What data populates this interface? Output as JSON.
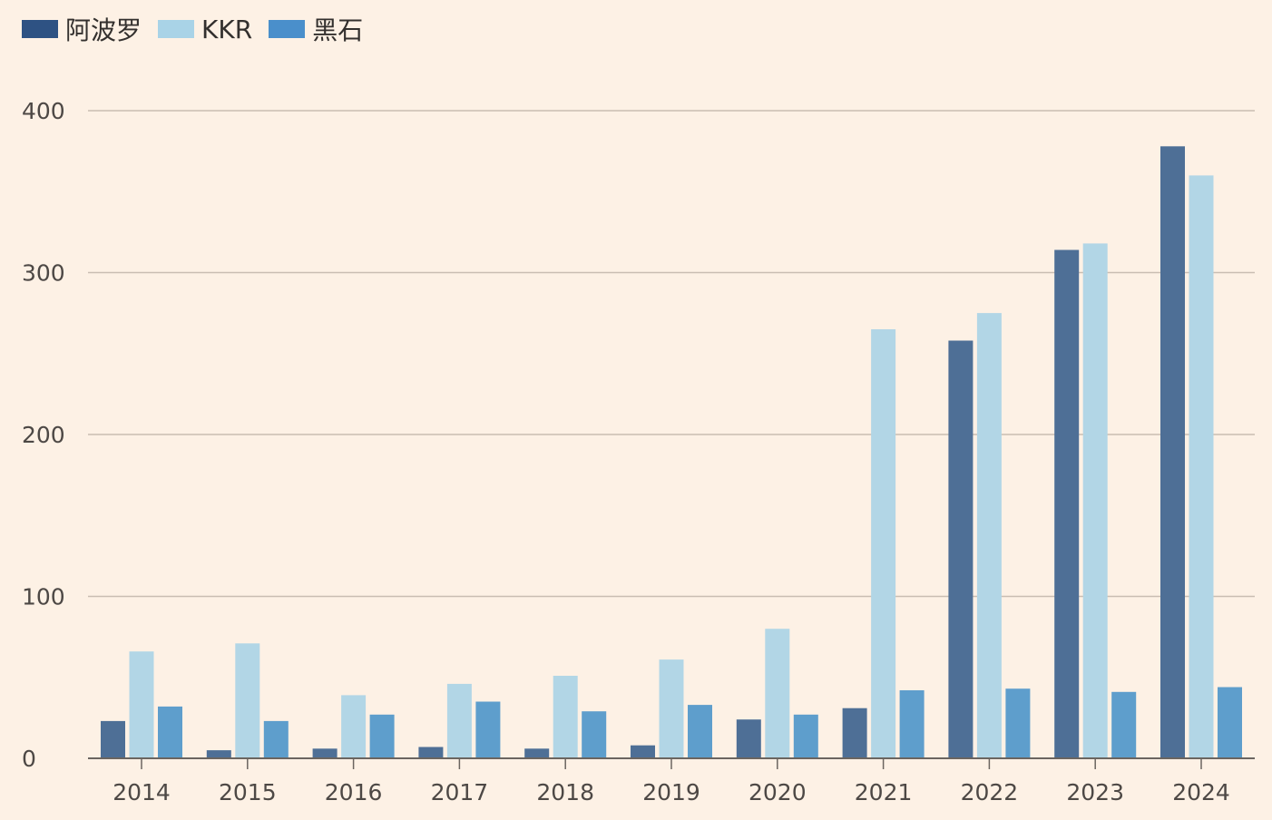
{
  "chart_data": {
    "type": "bar",
    "categories": [
      "2014",
      "2015",
      "2016",
      "2017",
      "2018",
      "2019",
      "2020",
      "2021",
      "2022",
      "2023",
      "2024"
    ],
    "series": [
      {
        "name": "阿波罗",
        "color": "#4e6f96",
        "values": [
          23,
          5,
          6,
          7,
          6,
          8,
          24,
          31,
          258,
          314,
          378
        ]
      },
      {
        "name": "KKR",
        "color": "#b2d6e6",
        "values": [
          66,
          71,
          39,
          46,
          51,
          61,
          80,
          265,
          275,
          318,
          360
        ]
      },
      {
        "name": "黑石",
        "color": "#5e9ecc",
        "values": [
          32,
          23,
          27,
          35,
          29,
          33,
          27,
          42,
          43,
          41,
          44
        ]
      }
    ],
    "legend_colors": [
      "#2e5283",
      "#a9d3e7",
      "#4a8fcb"
    ],
    "yticks": [
      0,
      100,
      200,
      300,
      400
    ],
    "ylim": [
      0,
      400
    ],
    "grid": true,
    "legend": "top-left",
    "title": "",
    "xlabel": "",
    "ylabel": ""
  }
}
